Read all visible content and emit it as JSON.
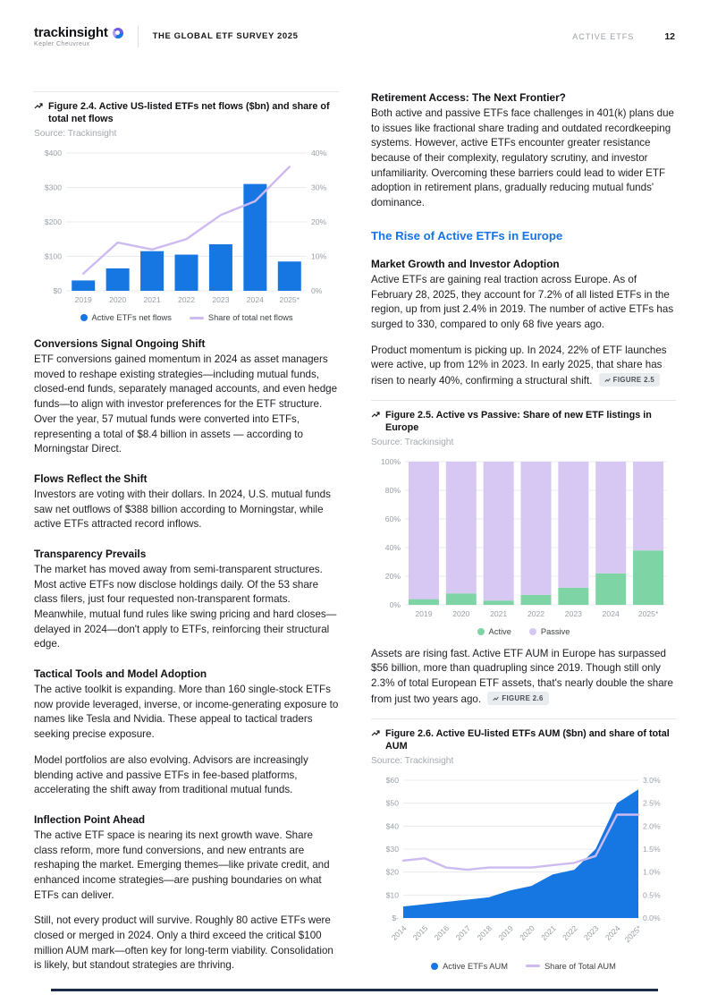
{
  "header": {
    "logo_text": "trackinsight",
    "logo_sub": "Kepler Cheuvreux",
    "doc_title": "THE GLOBAL ETF SURVEY 2025",
    "section_label": "ACTIVE ETFS",
    "page_number": "12"
  },
  "figures": {
    "fig24": {
      "caption": "Figure 2.4. Active US-listed ETFs net flows ($bn) and share of total net flows",
      "source": "Source: Trackinsight"
    },
    "fig25": {
      "caption": "Figure 2.5. Active vs Passive: Share of new ETF listings in Europe",
      "source": "Source: Trackinsight"
    },
    "fig26": {
      "caption": "Figure 2.6. Active EU-listed ETFs AUM ($bn) and share of total AUM",
      "source": "Source: Trackinsight"
    }
  },
  "left_column": {
    "conversions": {
      "heading": "Conversions Signal Ongoing Shift",
      "body": "ETF conversions gained momentum in 2024 as asset managers moved to reshape existing strategies—including mutual funds, closed-end funds, separately managed accounts, and even hedge funds—to align with investor preferences for the ETF structure. Over the year, 57 mutual funds were converted into ETFs, representing a total of $8.4 billion in assets — according to Morningstar Direct."
    },
    "flows": {
      "heading": "Flows Reflect the Shift",
      "body": "Investors are voting with their dollars. In 2024, U.S. mutual funds saw net outflows of $388 billion according to Morningstar, while active ETFs attracted record inflows."
    },
    "transparency": {
      "heading": "Transparency Prevails",
      "body": "The market has moved away from semi-transparent structures. Most active ETFs now disclose holdings daily. Of the 53 share class filers, just four requested non-transparent formats. Meanwhile, mutual fund rules like swing pricing and hard closes—delayed in 2024—don't apply to ETFs, reinforcing their structural edge."
    },
    "tactical": {
      "heading": "Tactical Tools and Model Adoption",
      "body1": "The active toolkit is expanding. More than 160 single-stock ETFs now provide leveraged, inverse, or income-generating exposure to names like Tesla and Nvidia. These appeal to tactical traders seeking precise exposure.",
      "body2": "Model portfolios are also evolving. Advisors are increasingly blending active and passive ETFs in fee-based platforms, accelerating the shift away from traditional mutual funds."
    },
    "inflection": {
      "heading": "Inflection Point Ahead",
      "body1": "The active ETF space is nearing its next growth wave. Share class reform, more fund conversions, and new entrants are reshaping the market. Emerging themes—like private credit, and enhanced income strategies—are pushing boundaries on what ETFs can deliver.",
      "body2": "Still, not every product will survive. Roughly 80 active ETFs were closed or merged in 2024. Only a third exceed the critical $100 million AUM mark—often key for long-term viability. Consolidation is likely, but standout strategies are thriving."
    }
  },
  "right_column": {
    "retirement": {
      "heading": "Retirement Access: The Next Frontier?",
      "body": "Both active and passive ETFs face challenges in 401(k) plans due to issues like fractional share trading and outdated recordkeeping systems. However, active ETFs encounter greater resistance because of their complexity, regulatory scrutiny, and investor unfamiliarity. Overcoming these barriers could lead to wider ETF adoption in retirement plans, gradually reducing mutual funds' dominance."
    },
    "europe_heading": "The Rise of Active ETFs in Europe",
    "market_growth": {
      "heading": "Market Growth and Investor Adoption",
      "body": "Active ETFs are gaining real traction across Europe. As of February 28, 2025, they account for 7.2% of all listed ETFs in the region, up from just 2.4% in 2019. The number of active ETFs has surged to 330, compared to only 68 five years ago."
    },
    "momentum": {
      "body": "Product momentum is picking up. In 2024, 22% of ETF launches were active, up from 12% in 2023. In early 2025, that share has risen to nearly 40%, confirming a structural shift.",
      "figure_ref": "FIGURE 2.5"
    },
    "assets": {
      "body": "Assets are rising fast. Active ETF AUM in Europe has surpassed $56 billion, more than quadrupling since 2019. Though still only 2.3% of total European ETF assets, that's nearly double the share from just two years ago.",
      "figure_ref": "FIGURE 2.6"
    }
  },
  "colors": {
    "accent_blue": "#1777e2",
    "lavender_line": "#cdbaf1",
    "active_green": "#7fd4a6",
    "passive_purple": "#d7c7f3",
    "heading_blue": "#1673e8"
  },
  "chart_data": [
    {
      "id": "fig24",
      "type": "bar+line",
      "title": "Active US-listed ETFs net flows ($bn) and share of total net flows",
      "categories": [
        "2019",
        "2020",
        "2021",
        "2022",
        "2023",
        "2024",
        "2025*"
      ],
      "series": [
        {
          "name": "Active ETFs net flows",
          "type": "bar",
          "axis": "left",
          "marker": "dot",
          "color": "#1777e2",
          "values": [
            30,
            65,
            115,
            105,
            135,
            310,
            85
          ]
        },
        {
          "name": "Share of total net flows",
          "type": "line",
          "axis": "right",
          "marker": "line",
          "color": "#cdbaf1",
          "values": [
            5,
            14,
            12,
            15,
            22,
            26,
            36
          ]
        }
      ],
      "left_axis": {
        "tick_labels": [
          "$0",
          "$100",
          "$200",
          "$300",
          "$400"
        ],
        "tick_values": [
          0,
          100,
          200,
          300,
          400
        ],
        "min": 0,
        "max": 400
      },
      "right_axis": {
        "tick_labels": [
          "0%",
          "10%",
          "20%",
          "30%",
          "40%"
        ],
        "tick_values": [
          0,
          10,
          20,
          30,
          40
        ],
        "min": 0,
        "max": 40
      },
      "grid": true,
      "legend_position": "bottom"
    },
    {
      "id": "fig25",
      "type": "stacked-bar",
      "title": "Active vs Passive: Share of new ETF listings in Europe",
      "categories": [
        "2019",
        "2020",
        "2021",
        "2022",
        "2023",
        "2024",
        "2025*"
      ],
      "series": [
        {
          "name": "Active",
          "marker": "dot",
          "color": "#7fd4a6",
          "values": [
            4,
            8,
            3,
            7,
            12,
            22,
            38
          ]
        },
        {
          "name": "Passive",
          "marker": "dot",
          "color": "#d7c7f3",
          "values": [
            96,
            92,
            97,
            93,
            88,
            78,
            62
          ]
        }
      ],
      "y_axis": {
        "tick_labels": [
          "0%",
          "20%",
          "40%",
          "60%",
          "80%",
          "100%"
        ],
        "tick_values": [
          0,
          20,
          40,
          60,
          80,
          100
        ],
        "min": 0,
        "max": 100
      },
      "grid": true,
      "legend_position": "bottom"
    },
    {
      "id": "fig26",
      "type": "area+line",
      "title": "Active EU-listed ETFs AUM ($bn) and share of total AUM",
      "categories": [
        "2014",
        "2015",
        "2016",
        "2017",
        "2018",
        "2019",
        "2020",
        "2021",
        "2022",
        "2023",
        "2024",
        "2025*"
      ],
      "series": [
        {
          "name": "Active ETFs AUM",
          "type": "area",
          "axis": "left",
          "marker": "dot",
          "color": "#1777e2",
          "values": [
            5,
            6,
            7,
            8,
            9,
            12,
            14,
            19,
            21,
            30,
            50,
            56
          ]
        },
        {
          "name": "Share of Total AUM",
          "type": "line",
          "axis": "right",
          "marker": "line",
          "color": "#cdbaf1",
          "values": [
            1.25,
            1.3,
            1.1,
            1.05,
            1.1,
            1.1,
            1.1,
            1.15,
            1.2,
            1.35,
            2.25,
            2.25
          ]
        }
      ],
      "left_axis": {
        "tick_labels": [
          "$-",
          "$10",
          "$20",
          "$30",
          "$40",
          "$50",
          "$60"
        ],
        "tick_values": [
          0,
          10,
          20,
          30,
          40,
          50,
          60
        ],
        "min": 0,
        "max": 60
      },
      "right_axis": {
        "tick_labels": [
          "0.0%",
          "0.5%",
          "1.0%",
          "1.5%",
          "2.0%",
          "2.5%",
          "3.0%"
        ],
        "tick_values": [
          0,
          0.5,
          1,
          1.5,
          2,
          2.5,
          3
        ],
        "min": 0,
        "max": 3
      },
      "grid": true,
      "legend_position": "bottom"
    }
  ]
}
